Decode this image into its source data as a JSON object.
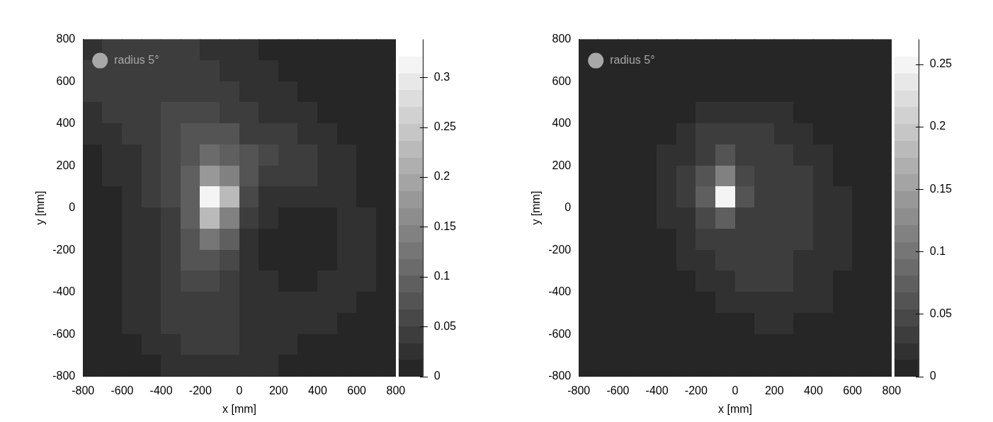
{
  "chart_data": [
    {
      "type": "heatmap",
      "xlabel": "x [mm]",
      "ylabel": "y [mm]",
      "annotation": "radius 5°",
      "xlim": [
        -800,
        800
      ],
      "ylim": [
        -800,
        800
      ],
      "xticks": [
        -800,
        -600,
        -400,
        -200,
        0,
        200,
        400,
        600,
        800
      ],
      "yticks": [
        -800,
        -600,
        -400,
        -200,
        0,
        200,
        400,
        600,
        800
      ],
      "grid": false,
      "x": [
        -750,
        -650,
        -550,
        -450,
        -350,
        -250,
        -150,
        -50,
        50,
        150,
        250,
        350,
        450,
        550,
        650,
        750
      ],
      "y": [
        750,
        650,
        550,
        450,
        350,
        250,
        150,
        50,
        -50,
        -150,
        -250,
        -350,
        -450,
        -550,
        -650,
        -750
      ],
      "cells": [
        [
          0.03,
          0.04,
          0.04,
          0.04,
          0.04,
          0.04,
          0.03,
          0.03,
          0.02,
          0.01,
          0.01,
          0.0,
          0.0,
          0.0,
          0.0,
          0.0
        ],
        [
          0.04,
          0.04,
          0.05,
          0.05,
          0.05,
          0.04,
          0.04,
          0.03,
          0.02,
          0.02,
          0.01,
          0.01,
          0.0,
          0.0,
          0.0,
          0.0
        ],
        [
          0.04,
          0.05,
          0.05,
          0.05,
          0.05,
          0.05,
          0.05,
          0.04,
          0.03,
          0.02,
          0.02,
          0.01,
          0.01,
          0.0,
          0.0,
          0.0
        ],
        [
          0.03,
          0.04,
          0.05,
          0.05,
          0.06,
          0.06,
          0.06,
          0.05,
          0.04,
          0.03,
          0.03,
          0.02,
          0.01,
          0.01,
          0.0,
          0.0
        ],
        [
          0.02,
          0.03,
          0.04,
          0.05,
          0.06,
          0.07,
          0.08,
          0.07,
          0.05,
          0.05,
          0.04,
          0.03,
          0.02,
          0.01,
          0.0,
          0.0
        ],
        [
          0.01,
          0.02,
          0.03,
          0.04,
          0.06,
          0.08,
          0.11,
          0.1,
          0.07,
          0.06,
          0.05,
          0.04,
          0.03,
          0.02,
          0.01,
          0.0
        ],
        [
          0.01,
          0.02,
          0.03,
          0.04,
          0.06,
          0.09,
          0.17,
          0.14,
          0.08,
          0.05,
          0.04,
          0.04,
          0.03,
          0.02,
          0.01,
          0.0
        ],
        [
          0.01,
          0.01,
          0.02,
          0.04,
          0.06,
          0.1,
          0.32,
          0.22,
          0.06,
          0.03,
          0.02,
          0.02,
          0.02,
          0.02,
          0.01,
          0.0
        ],
        [
          0.01,
          0.01,
          0.02,
          0.03,
          0.05,
          0.09,
          0.22,
          0.15,
          0.04,
          0.02,
          0.01,
          0.01,
          0.01,
          0.02,
          0.02,
          0.01
        ],
        [
          0.0,
          0.01,
          0.02,
          0.03,
          0.05,
          0.08,
          0.12,
          0.09,
          0.03,
          0.01,
          0.01,
          0.01,
          0.01,
          0.02,
          0.02,
          0.01
        ],
        [
          0.0,
          0.01,
          0.02,
          0.03,
          0.05,
          0.07,
          0.08,
          0.06,
          0.03,
          0.01,
          0.01,
          0.01,
          0.01,
          0.02,
          0.02,
          0.01
        ],
        [
          0.0,
          0.01,
          0.02,
          0.03,
          0.05,
          0.06,
          0.06,
          0.05,
          0.03,
          0.02,
          0.01,
          0.01,
          0.02,
          0.02,
          0.02,
          0.01
        ],
        [
          0.0,
          0.01,
          0.02,
          0.03,
          0.04,
          0.05,
          0.05,
          0.05,
          0.03,
          0.02,
          0.02,
          0.02,
          0.02,
          0.02,
          0.01,
          0.0
        ],
        [
          0.0,
          0.01,
          0.02,
          0.03,
          0.04,
          0.05,
          0.05,
          0.04,
          0.03,
          0.03,
          0.02,
          0.02,
          0.02,
          0.01,
          0.01,
          0.0
        ],
        [
          0.0,
          0.0,
          0.01,
          0.02,
          0.03,
          0.04,
          0.04,
          0.04,
          0.03,
          0.02,
          0.02,
          0.01,
          0.01,
          0.01,
          0.0,
          0.0
        ],
        [
          0.0,
          0.0,
          0.01,
          0.01,
          0.02,
          0.03,
          0.03,
          0.03,
          0.02,
          0.02,
          0.01,
          0.01,
          0.0,
          0.0,
          0.0,
          0.0
        ]
      ],
      "colorbar": {
        "range": [
          0,
          0.338
        ],
        "ticks": [
          0,
          0.05,
          0.1,
          0.15,
          0.2,
          0.25,
          0.3
        ]
      }
    },
    {
      "type": "heatmap",
      "xlabel": "x [mm]",
      "ylabel": "y [mm]",
      "annotation": "radius 5°",
      "xlim": [
        -800,
        800
      ],
      "ylim": [
        -800,
        800
      ],
      "xticks": [
        -800,
        -600,
        -400,
        -200,
        0,
        200,
        400,
        600,
        800
      ],
      "yticks": [
        -800,
        -600,
        -400,
        -200,
        0,
        200,
        400,
        600,
        800
      ],
      "grid": false,
      "x": [
        -750,
        -650,
        -550,
        -450,
        -350,
        -250,
        -150,
        -50,
        50,
        150,
        250,
        350,
        450,
        550,
        650,
        750
      ],
      "y": [
        750,
        650,
        550,
        450,
        350,
        250,
        150,
        50,
        -50,
        -150,
        -250,
        -350,
        -450,
        -550,
        -650,
        -750
      ],
      "cells": [
        [
          0,
          0,
          0,
          0,
          0,
          0,
          0,
          0,
          0,
          0,
          0,
          0,
          0,
          0,
          0,
          0
        ],
        [
          0,
          0,
          0,
          0,
          0,
          0,
          0,
          0,
          0,
          0,
          0,
          0,
          0,
          0,
          0,
          0
        ],
        [
          0,
          0,
          0,
          0,
          0,
          0,
          0.01,
          0.01,
          0.01,
          0.01,
          0.01,
          0,
          0,
          0,
          0,
          0
        ],
        [
          0,
          0,
          0,
          0,
          0.01,
          0.01,
          0.02,
          0.02,
          0.02,
          0.02,
          0.02,
          0.01,
          0.01,
          0,
          0,
          0
        ],
        [
          0,
          0,
          0,
          0.01,
          0.01,
          0.02,
          0.03,
          0.04,
          0.03,
          0.03,
          0.02,
          0.02,
          0.01,
          0.01,
          0,
          0
        ],
        [
          0,
          0,
          0,
          0.01,
          0.02,
          0.02,
          0.04,
          0.06,
          0.04,
          0.03,
          0.03,
          0.02,
          0.02,
          0.01,
          0,
          0
        ],
        [
          0,
          0,
          0,
          0.01,
          0.02,
          0.03,
          0.06,
          0.12,
          0.05,
          0.04,
          0.03,
          0.03,
          0.02,
          0.01,
          0.01,
          0
        ],
        [
          0,
          0,
          0,
          0.01,
          0.02,
          0.03,
          0.08,
          0.25,
          0.06,
          0.04,
          0.03,
          0.03,
          0.02,
          0.02,
          0.01,
          0
        ],
        [
          0,
          0,
          0,
          0.01,
          0.02,
          0.02,
          0.05,
          0.08,
          0.04,
          0.03,
          0.03,
          0.03,
          0.02,
          0.02,
          0.01,
          0
        ],
        [
          0,
          0,
          0,
          0.01,
          0.01,
          0.02,
          0.03,
          0.04,
          0.03,
          0.03,
          0.03,
          0.03,
          0.02,
          0.02,
          0.01,
          0
        ],
        [
          0,
          0,
          0,
          0,
          0.01,
          0.02,
          0.02,
          0.03,
          0.03,
          0.03,
          0.03,
          0.02,
          0.02,
          0.02,
          0.01,
          0
        ],
        [
          0,
          0,
          0,
          0,
          0.01,
          0.01,
          0.02,
          0.02,
          0.03,
          0.03,
          0.03,
          0.02,
          0.02,
          0.01,
          0.01,
          0
        ],
        [
          0,
          0,
          0,
          0,
          0,
          0.01,
          0.01,
          0.02,
          0.02,
          0.02,
          0.02,
          0.02,
          0.02,
          0.01,
          0,
          0
        ],
        [
          0,
          0,
          0,
          0,
          0,
          0,
          0.01,
          0.01,
          0.01,
          0.02,
          0.02,
          0.01,
          0.01,
          0.01,
          0,
          0
        ],
        [
          0,
          0,
          0,
          0,
          0,
          0,
          0,
          0,
          0.01,
          0.01,
          0.01,
          0.01,
          0,
          0,
          0,
          0
        ],
        [
          0,
          0,
          0,
          0,
          0,
          0,
          0,
          0,
          0,
          0,
          0,
          0,
          0,
          0,
          0,
          0
        ]
      ],
      "colorbar": {
        "range": [
          0,
          0.27
        ],
        "ticks": [
          0,
          0.05,
          0.1,
          0.15,
          0.2,
          0.25
        ]
      }
    }
  ]
}
